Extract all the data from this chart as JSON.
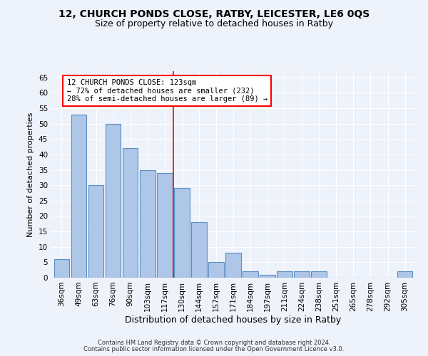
{
  "title1": "12, CHURCH PONDS CLOSE, RATBY, LEICESTER, LE6 0QS",
  "title2": "Size of property relative to detached houses in Ratby",
  "xlabel": "Distribution of detached houses by size in Ratby",
  "ylabel": "Number of detached properties",
  "categories": [
    "36sqm",
    "49sqm",
    "63sqm",
    "76sqm",
    "90sqm",
    "103sqm",
    "117sqm",
    "130sqm",
    "144sqm",
    "157sqm",
    "171sqm",
    "184sqm",
    "197sqm",
    "211sqm",
    "224sqm",
    "238sqm",
    "251sqm",
    "265sqm",
    "278sqm",
    "292sqm",
    "305sqm"
  ],
  "values": [
    6,
    53,
    30,
    50,
    42,
    35,
    34,
    29,
    18,
    5,
    8,
    2,
    1,
    2,
    2,
    2,
    0,
    0,
    0,
    0,
    2
  ],
  "bar_color": "#aec6e8",
  "bar_edge_color": "#5a8fc2",
  "bar_edge_width": 0.8,
  "vline_x": 6.5,
  "vline_color": "red",
  "annotation_text": "12 CHURCH PONDS CLOSE: 123sqm\n← 72% of detached houses are smaller (232)\n28% of semi-detached houses are larger (89) →",
  "annotation_box_color": "white",
  "annotation_box_edge": "red",
  "ylim": [
    0,
    67
  ],
  "yticks": [
    0,
    5,
    10,
    15,
    20,
    25,
    30,
    35,
    40,
    45,
    50,
    55,
    60,
    65
  ],
  "footnote1": "Contains HM Land Registry data © Crown copyright and database right 2024.",
  "footnote2": "Contains public sector information licensed under the Open Government Licence v3.0.",
  "background_color": "#eef2fa",
  "grid_color": "#ffffff",
  "title1_fontsize": 10,
  "title2_fontsize": 9,
  "xlabel_fontsize": 9,
  "ylabel_fontsize": 8,
  "tick_fontsize": 7.5,
  "annotation_fontsize": 7.5,
  "footnote_fontsize": 6
}
